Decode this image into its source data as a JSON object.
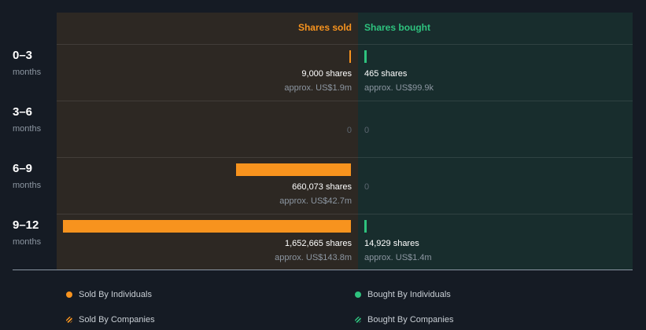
{
  "chart_data": {
    "type": "bar",
    "headers": {
      "sold": "Shares sold",
      "bought": "Shares bought"
    },
    "categories": [
      {
        "period": "0–3",
        "unit": "months"
      },
      {
        "period": "3–6",
        "unit": "months"
      },
      {
        "period": "6–9",
        "unit": "months"
      },
      {
        "period": "9–12",
        "unit": "months"
      }
    ],
    "series": [
      {
        "name": "Shares sold",
        "values": [
          9000,
          0,
          660073,
          1652665
        ],
        "labels": [
          "9,000 shares",
          "0",
          "660,073 shares",
          "1,652,665 shares"
        ],
        "approx": [
          "approx. US$1.9m",
          "",
          "approx. US$42.7m",
          "approx. US$143.8m"
        ]
      },
      {
        "name": "Shares bought",
        "values": [
          465,
          0,
          0,
          14929
        ],
        "labels": [
          "465 shares",
          "0",
          "0",
          "14,929 shares"
        ],
        "approx": [
          "approx. US$99.9k",
          "",
          "",
          "approx. US$1.4m"
        ]
      }
    ],
    "colors": {
      "sold": "#f7931e",
      "bought": "#2ec27e"
    }
  },
  "legend": [
    {
      "label": "Sold By Individuals",
      "color": "#f7931e",
      "icon": "dot-icon"
    },
    {
      "label": "Bought By Individuals",
      "color": "#2ec27e",
      "icon": "dot-icon"
    },
    {
      "label": "Sold By Companies",
      "color": "#f7931e",
      "icon": "hatched-dot-icon"
    },
    {
      "label": "Bought By Companies",
      "color": "#2ec27e",
      "icon": "hatched-dot-icon"
    }
  ]
}
